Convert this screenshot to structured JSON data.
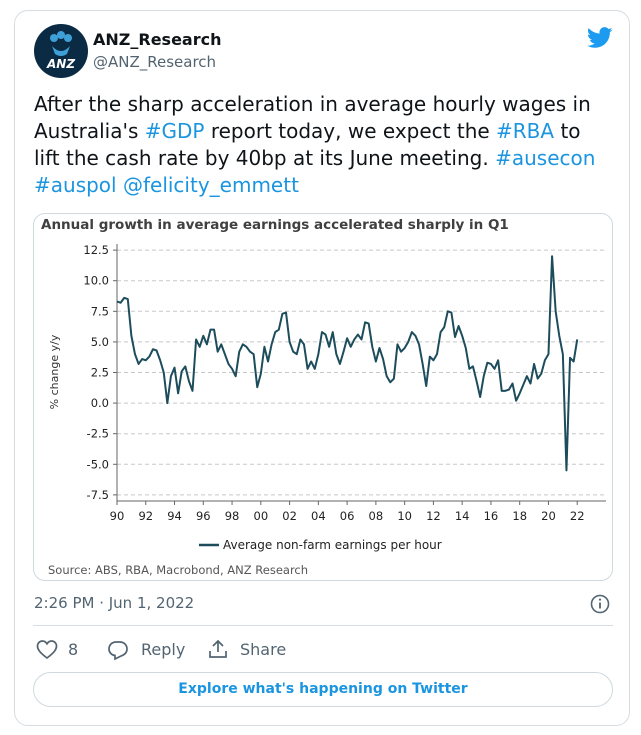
{
  "user": {
    "name": "ANZ_Research",
    "handle": "@ANZ_Research",
    "avatar_text": "ANZ"
  },
  "tweet": {
    "text": [
      "After the sharp acceleration in average hourly wages in Australia's ",
      "#GDP",
      " report today, we expect the ",
      "#RBA",
      " to lift the cash rate by 40bp at its June meeting. ",
      "#ausecon",
      " ",
      "#auspol",
      " ",
      "@felicity_emmett"
    ],
    "timestamp": "2:26 PM · Jun 1, 2022",
    "likes": "8",
    "reply": "Reply",
    "share": "Share",
    "explore": "Explore what's happening on Twitter"
  },
  "chart_data": {
    "type": "line",
    "title": "Annual growth in average earnings accelerated sharply in Q1",
    "ylabel": "% change y/y",
    "source": "Source: ABS, RBA, Macrobond, ANZ Research",
    "xlim": [
      1990,
      2024
    ],
    "ylim": [
      -8,
      13
    ],
    "grid": true,
    "xticks": [
      {
        "value": 1990,
        "label": "90"
      },
      {
        "value": 1992,
        "label": "92"
      },
      {
        "value": 1994,
        "label": "94"
      },
      {
        "value": 1996,
        "label": "96"
      },
      {
        "value": 1998,
        "label": "98"
      },
      {
        "value": 2000,
        "label": "00"
      },
      {
        "value": 2002,
        "label": "02"
      },
      {
        "value": 2004,
        "label": "04"
      },
      {
        "value": 2006,
        "label": "06"
      },
      {
        "value": 2008,
        "label": "08"
      },
      {
        "value": 2010,
        "label": "10"
      },
      {
        "value": 2012,
        "label": "12"
      },
      {
        "value": 2014,
        "label": "14"
      },
      {
        "value": 2016,
        "label": "16"
      },
      {
        "value": 2018,
        "label": "18"
      },
      {
        "value": 2020,
        "label": "20"
      },
      {
        "value": 2022,
        "label": "22"
      }
    ],
    "yticks": [
      12.5,
      {
        "value": 10,
        "label": "10.0"
      },
      7.5,
      {
        "value": 5,
        "label": "5.0"
      },
      2.5,
      {
        "value": 0,
        "label": "0.0"
      },
      -2.5,
      {
        "value": -5,
        "label": "-5.0"
      },
      -7.5
    ],
    "x": [
      1990,
      1990.25,
      1990.5,
      1990.75,
      1991,
      1991.25,
      1991.5,
      1991.75,
      1992,
      1992.25,
      1992.5,
      1992.75,
      1993,
      1993.25,
      1993.5,
      1993.75,
      1994,
      1994.25,
      1994.5,
      1994.75,
      1995,
      1995.25,
      1995.5,
      1995.75,
      1996,
      1996.25,
      1996.5,
      1996.75,
      1997,
      1997.25,
      1997.5,
      1997.75,
      1998,
      1998.25,
      1998.5,
      1998.75,
      1999,
      1999.25,
      1999.5,
      1999.75,
      2000,
      2000.25,
      2000.5,
      2000.75,
      2001,
      2001.25,
      2001.5,
      2001.75,
      2002,
      2002.25,
      2002.5,
      2002.75,
      2003,
      2003.25,
      2003.5,
      2003.75,
      2004,
      2004.25,
      2004.5,
      2004.75,
      2005,
      2005.25,
      2005.5,
      2005.75,
      2006,
      2006.25,
      2006.5,
      2006.75,
      2007,
      2007.25,
      2007.5,
      2007.75,
      2008,
      2008.25,
      2008.5,
      2008.75,
      2009,
      2009.25,
      2009.5,
      2009.75,
      2010,
      2010.25,
      2010.5,
      2010.75,
      2011,
      2011.25,
      2011.5,
      2011.75,
      2012,
      2012.25,
      2012.5,
      2012.75,
      2013,
      2013.25,
      2013.5,
      2013.75,
      2014,
      2014.25,
      2014.5,
      2014.75,
      2015,
      2015.25,
      2015.5,
      2015.75,
      2016,
      2016.25,
      2016.5,
      2016.75,
      2017,
      2017.25,
      2017.5,
      2017.75,
      2018,
      2018.25,
      2018.5,
      2018.75,
      2019,
      2019.25,
      2019.5,
      2019.75,
      2020,
      2020.25,
      2020.5,
      2020.75,
      2021,
      2021.25,
      2021.5,
      2021.75,
      2022
    ],
    "series": [
      {
        "name": "Average non-farm earnings per hour",
        "color": "#1d4d5c",
        "values": [
          8.3,
          8.2,
          8.6,
          8.5,
          5.5,
          4.0,
          3.2,
          3.6,
          3.5,
          3.8,
          4.4,
          4.3,
          3.5,
          2.5,
          0.0,
          2.2,
          2.9,
          0.8,
          2.6,
          3.0,
          1.8,
          1.0,
          5.2,
          4.6,
          5.5,
          4.8,
          6.0,
          6.0,
          4.2,
          4.8,
          4.0,
          3.2,
          2.8,
          2.2,
          4.2,
          4.8,
          4.6,
          4.2,
          4.0,
          1.3,
          2.4,
          4.6,
          3.4,
          4.8,
          5.8,
          6.0,
          7.3,
          7.4,
          5.0,
          4.2,
          4.0,
          5.2,
          4.8,
          2.8,
          3.4,
          2.8,
          4.0,
          5.8,
          5.6,
          4.6,
          5.8,
          4.0,
          3.2,
          4.2,
          5.3,
          4.6,
          5.2,
          5.6,
          5.2,
          6.6,
          6.5,
          4.6,
          3.4,
          4.5,
          3.6,
          2.2,
          1.7,
          2.0,
          4.8,
          4.2,
          4.5,
          5.0,
          5.8,
          5.5,
          4.8,
          3.2,
          1.4,
          3.8,
          3.5,
          4.0,
          5.8,
          6.2,
          7.5,
          7.4,
          5.4,
          6.3,
          5.5,
          4.5,
          2.8,
          3.0,
          1.8,
          0.5,
          2.2,
          3.3,
          3.2,
          2.8,
          3.5,
          1.0,
          1.0,
          1.1,
          1.6,
          0.2,
          0.8,
          1.5,
          2.2,
          1.6,
          3.2,
          2.0,
          2.4,
          3.5,
          4.0,
          12.0,
          7.5,
          5.5,
          4.0,
          -5.5,
          3.7,
          3.4,
          5.2
        ]
      }
    ]
  }
}
